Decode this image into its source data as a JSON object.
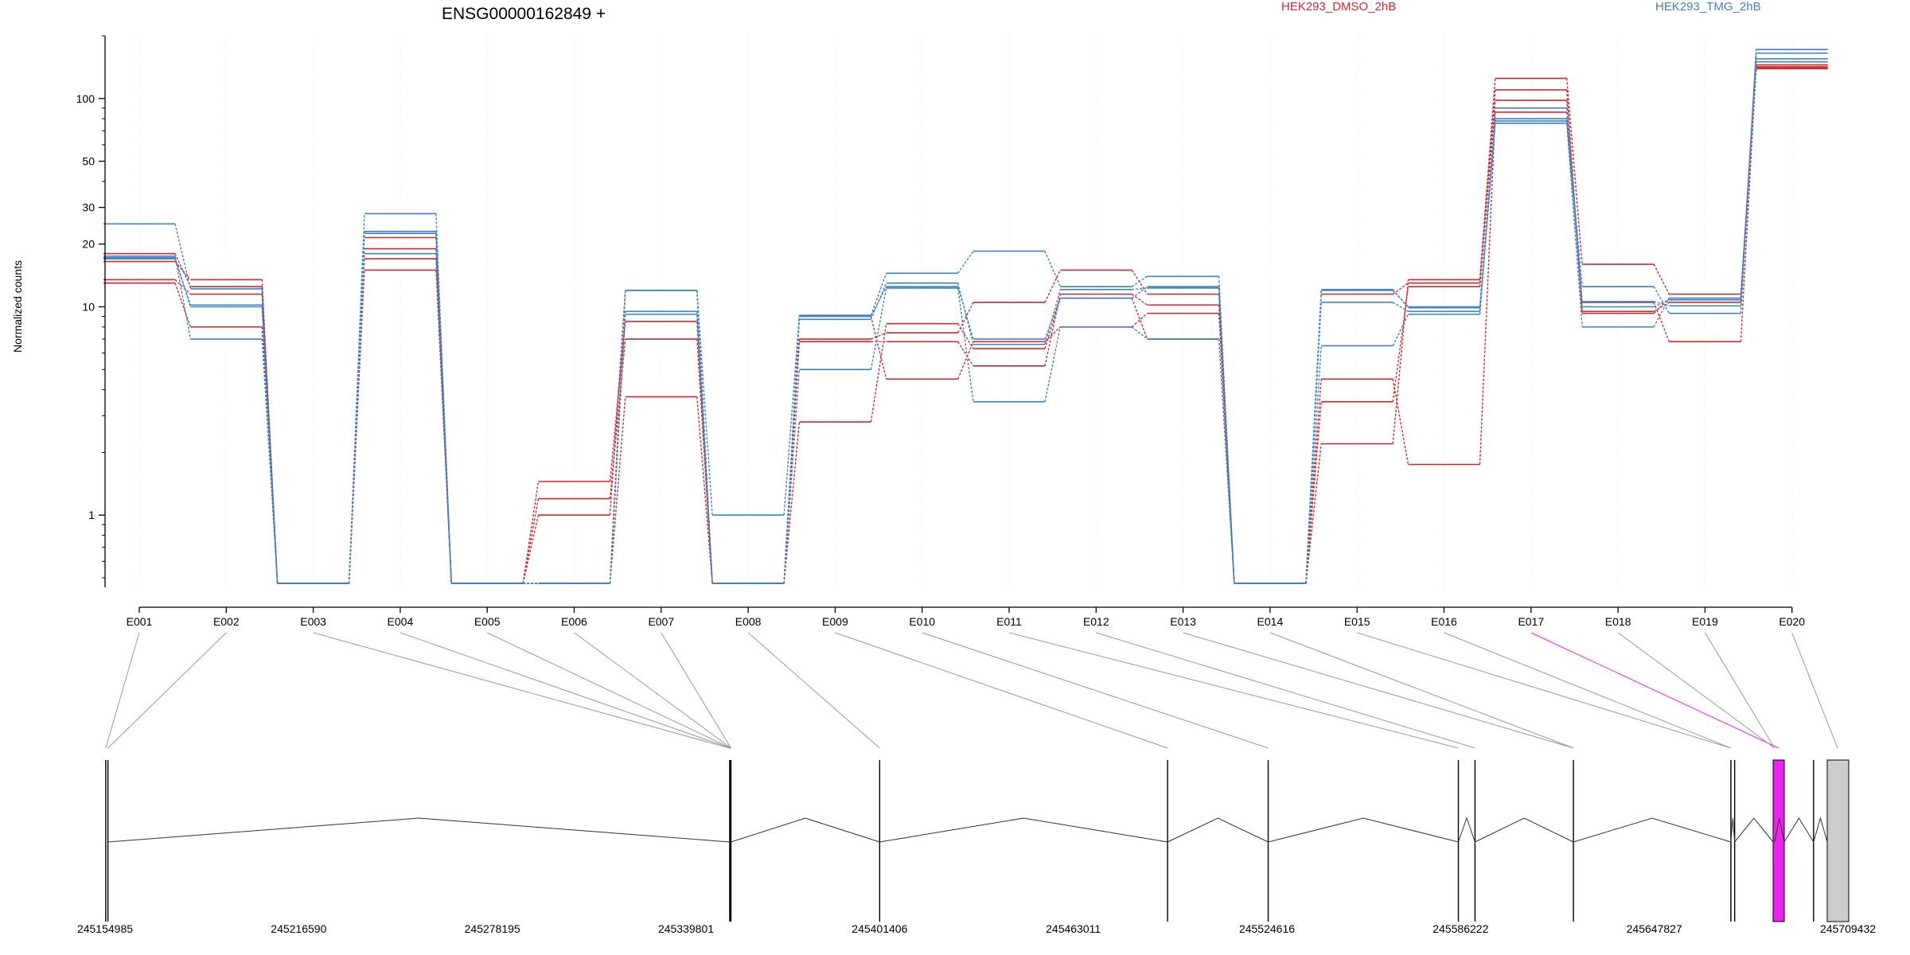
{
  "chart_data": {
    "type": "line",
    "title": "ENSG00000162849 +",
    "ylabel": "Normalized counts",
    "yscale": "log",
    "ylim": [
      0.45,
      200
    ],
    "yticks": [
      {
        "value": 1,
        "label": "1"
      },
      {
        "value": 10,
        "label": "10"
      },
      {
        "value": 20,
        "label": "20"
      },
      {
        "value": 30,
        "label": "30"
      },
      {
        "value": 50,
        "label": "50"
      },
      {
        "value": 100,
        "label": "100"
      }
    ],
    "legend": {
      "placement": "top",
      "entries": [
        "HEK293_DMSO_2hB",
        "HEK293_TMG_2hB"
      ]
    },
    "colors": {
      "HEK293_DMSO_2hB": "#d62728",
      "HEK293_TMG_2hB": "#3b83c4",
      "highlight": "#ee22ee",
      "gray_exon": "#cccccc"
    },
    "exons": [
      "E001",
      "E002",
      "E003",
      "E004",
      "E005",
      "E006",
      "E007",
      "E008",
      "E009",
      "E010",
      "E011",
      "E012",
      "E013",
      "E014",
      "E015",
      "E016",
      "E017",
      "E018",
      "E019",
      "E020"
    ],
    "series": [
      {
        "group": "HEK293_DMSO_2hB",
        "values": [
          18,
          12.5,
          0.47,
          21.5,
          0.47,
          1.2,
          7,
          0.47,
          7,
          7.5,
          10.5,
          15,
          11.5,
          0.47,
          2.2,
          13.5,
          125,
          16,
          11.5,
          139
        ]
      },
      {
        "group": "HEK293_DMSO_2hB",
        "values": [
          13.5,
          11.5,
          0.47,
          17,
          0.47,
          1.45,
          8.5,
          0.47,
          6.8,
          6.8,
          5.2,
          11.5,
          10.2,
          0.47,
          11.5,
          13,
          98,
          9.3,
          11,
          142
        ]
      },
      {
        "group": "HEK293_DMSO_2hB",
        "values": [
          13,
          8,
          0.47,
          15,
          0.47,
          0.47,
          3.7,
          0.47,
          9,
          4.5,
          6.8,
          8,
          9.3,
          0.47,
          4.5,
          1.75,
          86,
          10.5,
          6.8,
          145
        ]
      },
      {
        "group": "HEK293_DMSO_2hB",
        "values": [
          16.5,
          13.5,
          0.47,
          19,
          0.47,
          1.0,
          12,
          0.47,
          2.8,
          8.3,
          6.3,
          11,
          7,
          0.47,
          3.5,
          12.5,
          110,
          9.5,
          10.5,
          140
        ]
      },
      {
        "group": "HEK293_TMG_2hB",
        "values": [
          25,
          12.2,
          0.47,
          28,
          0.47,
          0.47,
          12,
          1.0,
          9.1,
          14.5,
          18.5,
          12.5,
          14,
          0.47,
          12,
          10,
          80,
          12.5,
          9.3,
          172
        ]
      },
      {
        "group": "HEK293_TMG_2hB",
        "values": [
          17,
          10.2,
          0.47,
          23,
          0.47,
          0.47,
          9.5,
          0.47,
          9,
          12.5,
          7,
          11,
          12.5,
          0.47,
          10.5,
          9.5,
          90,
          10,
          10.8,
          165
        ]
      },
      {
        "group": "HEK293_TMG_2hB",
        "values": [
          17.5,
          7,
          0.47,
          18,
          0.47,
          0.47,
          9.2,
          0.47,
          5,
          12.3,
          3.5,
          8,
          7,
          0.47,
          6.5,
          9.2,
          76,
          8,
          11,
          155
        ]
      },
      {
        "group": "HEK293_TMG_2hB",
        "values": [
          17.2,
          10,
          0.47,
          22.5,
          0.47,
          0.47,
          12,
          0.47,
          8.7,
          13,
          6.6,
          12.1,
          12.3,
          0.47,
          12.1,
          9.9,
          78,
          10.6,
          10.1,
          150
        ]
      }
    ],
    "gene_model": {
      "coord_labels": [
        "245154985",
        "245216590",
        "245278195",
        "245339801",
        "245401406",
        "245463011",
        "245524616",
        "245586222",
        "245647827",
        "245709432"
      ],
      "range": [
        245154985,
        245709432
      ],
      "exon_starts": [
        245155200,
        245155900,
        245353700,
        245353900,
        245354100,
        245401406,
        245493000,
        245525000,
        245585500,
        245590800,
        245622100,
        245672200,
        245673400,
        245686100,
        245698500
      ],
      "highlight_exon": 16
    }
  }
}
